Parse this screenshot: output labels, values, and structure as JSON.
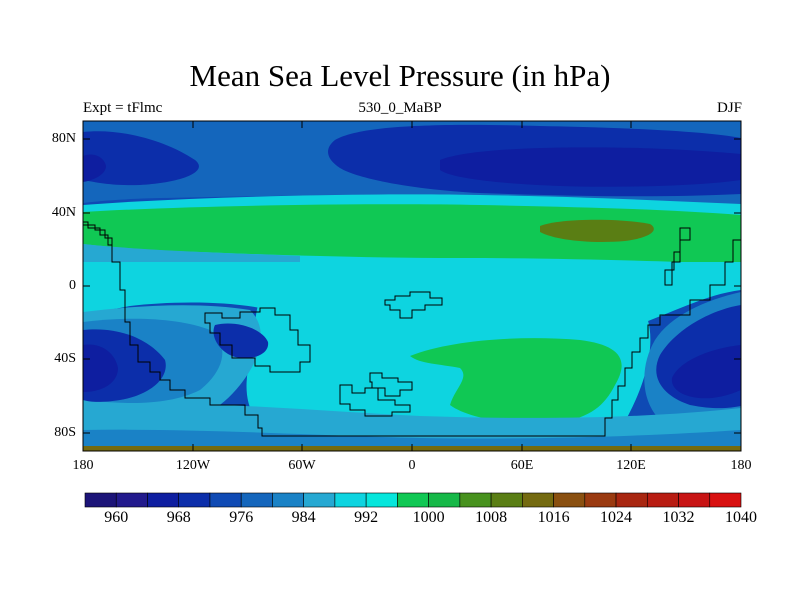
{
  "title": "Mean Sea Level Pressure (in hPa)",
  "subtitle_left": "Expt = tFlmc",
  "subtitle_center": "530_0_MaBP",
  "subtitle_right": "DJF",
  "y_labels": [
    "80N",
    "40N",
    "0",
    "40S",
    "80S"
  ],
  "x_labels": [
    "180",
    "120W",
    "60W",
    "0",
    "60E",
    "120E",
    "180"
  ],
  "colorbar": {
    "labels": [
      "960",
      "968",
      "976",
      "984",
      "992",
      "1000",
      "1008",
      "1016",
      "1024",
      "1032",
      "1040"
    ],
    "colors": [
      "#1c1478",
      "#221a8c",
      "#0e1ea0",
      "#0c2eaa",
      "#0f4ab4",
      "#1466bc",
      "#1a82c6",
      "#26a8d2",
      "#0ed4e0",
      "#06e6dc",
      "#10c854",
      "#16b848",
      "#48921e",
      "#5a7e14",
      "#746a10",
      "#8a5010",
      "#9a3a10",
      "#a82610",
      "#b81c12",
      "#c81414",
      "#d81010"
    ]
  },
  "legend": {
    "land_outline": "#000000",
    "levels": {
      "deep_low": "#0e1ea0",
      "low": "#0c2eaa",
      "mid_low": "#1a82c6",
      "mid": "#26a8d2",
      "cyan": "#0ed4e0",
      "green": "#10c854",
      "olive": "#5a7e14"
    }
  }
}
